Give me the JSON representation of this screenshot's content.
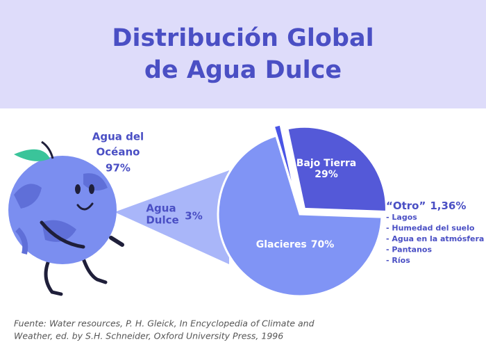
{
  "chart_data": {
    "type": "pie",
    "title": [
      "Distribución Global",
      "de Agua Dulce"
    ],
    "categories": [
      "Bajo Tierra",
      "Glacieres",
      "“Otro”"
    ],
    "values": [
      29,
      70,
      1.36
    ],
    "value_labels": [
      "29%",
      "70%",
      "1,36%"
    ],
    "colors": [
      "#5459d8",
      "#8094f5",
      "#4a55e6"
    ],
    "other_items": [
      "- Lagos",
      "- Humedad del suelo",
      "- Agua en la atmósfera",
      "- Pantanos",
      "- Ríos"
    ],
    "ocean": {
      "label": [
        "Agua del",
        "Océano"
      ],
      "value": "97%"
    },
    "freshwater": {
      "label": [
        "Agua",
        "Dulce"
      ],
      "value": "3%"
    },
    "source": [
      "Fuente: Water resources, P. H. Gleick, In Encyclopedia of Climate and",
      "Weather, ed. by S.H. Schneider, Oxford University Press, 1996"
    ]
  }
}
